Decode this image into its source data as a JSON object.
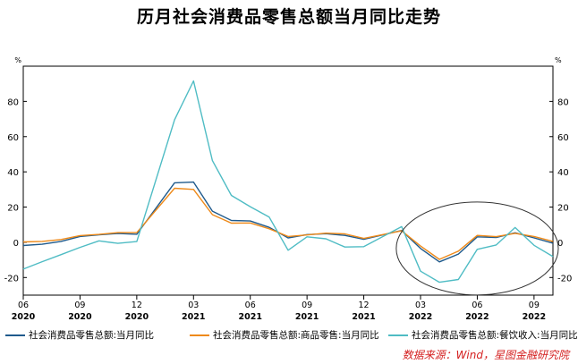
{
  "chart_data": {
    "type": "line",
    "title": "历月社会消费品零售总额当月同比走势",
    "y_unit": "%",
    "ylim": [
      -30,
      100
    ],
    "yticks": [
      -20,
      0,
      20,
      40,
      60,
      80
    ],
    "grid": false,
    "legend_position": "bottom",
    "x": [
      "2020-06",
      "2020-07",
      "2020-08",
      "2020-09",
      "2020-10",
      "2020-11",
      "2020-12",
      "2021-01",
      "2021-02",
      "2021-03",
      "2021-04",
      "2021-05",
      "2021-06",
      "2021-07",
      "2021-08",
      "2021-09",
      "2021-10",
      "2021-11",
      "2021-12",
      "2022-01",
      "2022-02",
      "2022-03",
      "2022-04",
      "2022-05",
      "2022-06",
      "2022-07",
      "2022-08",
      "2022-09",
      "2022-10"
    ],
    "x_tick_labels": [
      {
        "month": "06",
        "year": "2020"
      },
      {
        "month": "09",
        "year": "2020"
      },
      {
        "month": "12",
        "year": "2020"
      },
      {
        "month": "03",
        "year": "2021"
      },
      {
        "month": "06",
        "year": "2021"
      },
      {
        "month": "09",
        "year": "2021"
      },
      {
        "month": "12",
        "year": "2021"
      },
      {
        "month": "03",
        "year": "2022"
      },
      {
        "month": "06",
        "year": "2022"
      },
      {
        "month": "09",
        "year": "2022"
      }
    ],
    "series": [
      {
        "name": "社会消费品零售总额:当月同比",
        "color": "#1f5a8c",
        "values": [
          -1.8,
          -1.1,
          0.5,
          3.3,
          4.3,
          5.0,
          4.6,
          null,
          33.8,
          34.2,
          17.7,
          12.4,
          12.1,
          8.5,
          2.5,
          4.4,
          4.9,
          3.9,
          1.7,
          null,
          6.7,
          -3.5,
          -11.1,
          -6.7,
          3.1,
          2.7,
          5.4,
          2.5,
          -0.5
        ]
      },
      {
        "name": "社会消费品零售总额:商品零售:当月同比",
        "color": "#ee8a1a",
        "values": [
          0.2,
          0.5,
          1.6,
          3.8,
          4.5,
          5.5,
          5.5,
          null,
          30.7,
          30.0,
          15.7,
          10.9,
          11.0,
          7.7,
          3.3,
          4.2,
          5.2,
          4.8,
          2.2,
          null,
          6.5,
          -2.1,
          -9.7,
          -5.0,
          3.9,
          3.2,
          5.1,
          3.3,
          0.5
        ]
      },
      {
        "name": "社会消费品零售总额:餐饮收入:当月同比",
        "color": "#4fbcc4",
        "values": [
          -15.2,
          -11.0,
          -7.0,
          -2.9,
          0.8,
          -0.6,
          0.4,
          null,
          69.6,
          91.6,
          46.4,
          26.6,
          20.2,
          14.3,
          -4.5,
          3.1,
          2.0,
          -2.7,
          -2.5,
          null,
          8.9,
          -16.4,
          -22.7,
          -21.1,
          -4.0,
          -1.5,
          8.4,
          -1.7,
          -8.1
        ]
      }
    ],
    "annotation": "ellipse highlighting 2022 decline"
  },
  "legend": [
    {
      "label": "社会消费品零售总额:当月同比",
      "color": "#1f5a8c"
    },
    {
      "label": "社会消费品零售总额:商品零售:当月同比",
      "color": "#ee8a1a"
    },
    {
      "label": "社会消费品零售总额:餐饮收入:当月同比",
      "color": "#4fbcc4"
    }
  ],
  "source": "数据来源：Wind，星图金融研究院"
}
